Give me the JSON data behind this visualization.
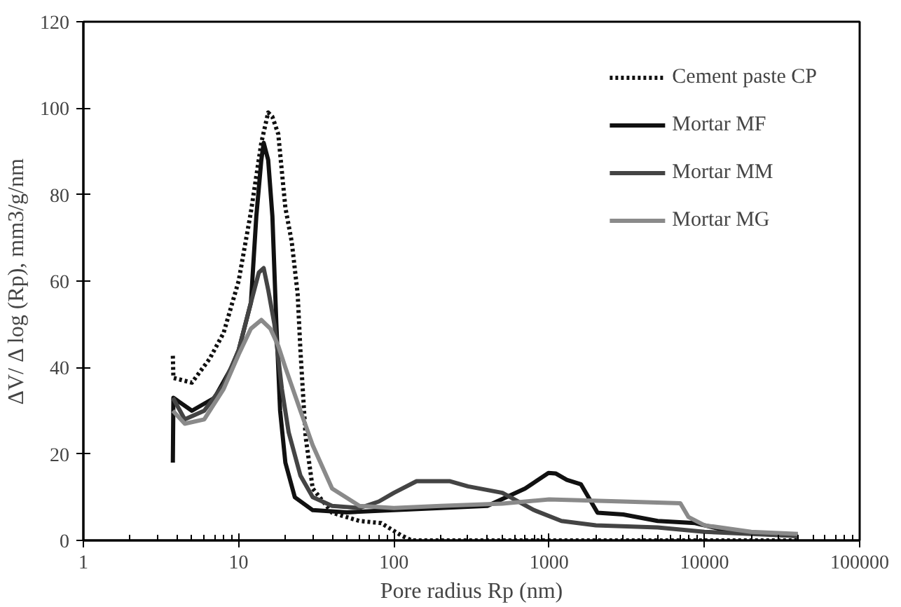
{
  "chart_data": {
    "type": "line",
    "xlabel": "Pore radius Rp (nm)",
    "ylabel": "ΔV/ Δ log (Rp), mm3/g/nm",
    "log": "x",
    "xlim": [
      1,
      100000
    ],
    "xticks": [
      1,
      10,
      100,
      1000,
      10000,
      100000
    ],
    "ylim": [
      0,
      120
    ],
    "yticks": [
      0,
      20,
      40,
      60,
      80,
      100,
      120
    ],
    "grid": false,
    "legend": "top right",
    "marker": "none",
    "series": [
      {
        "name": "Cement paste CP",
        "color": "#111111",
        "line_style": "dotted",
        "x": [
          3.77,
          3.8,
          5,
          6.5,
          8,
          10,
          12,
          14,
          15.5,
          16.5,
          18,
          20,
          22,
          24,
          25,
          27,
          30,
          40,
          60,
          83,
          111,
          130,
          1000,
          10000,
          40000
        ],
        "values": [
          42.7,
          37.6,
          36.5,
          42,
          48,
          60,
          76,
          92,
          99,
          98,
          94,
          77,
          69,
          57,
          44,
          24,
          12,
          6.4,
          4.5,
          4,
          1.2,
          0,
          0,
          0,
          0
        ]
      },
      {
        "name": "Mortar MF",
        "color": "#111111",
        "line_style": "solid",
        "x": [
          3.77,
          3.8,
          5,
          7,
          9,
          10,
          12,
          13,
          14,
          14.5,
          15.5,
          16.5,
          17.5,
          18.5,
          20,
          23,
          30,
          50,
          100,
          200,
          400,
          700,
          990,
          1100,
          1300,
          1600,
          2050,
          3000,
          5000,
          8700,
          15000,
          40000
        ],
        "values": [
          18,
          33,
          30,
          33,
          40,
          44,
          55,
          75,
          88,
          92,
          88,
          75,
          50,
          30,
          18,
          10,
          7,
          6.5,
          7,
          7.5,
          8,
          12,
          15.6,
          15.5,
          14,
          13,
          6.4,
          6,
          4.5,
          4,
          2,
          1
        ]
      },
      {
        "name": "Mortar MM",
        "color": "#444444",
        "line_style": "solid",
        "x": [
          3.77,
          4.5,
          6,
          8,
          10,
          12,
          13.5,
          14.5,
          15.5,
          17,
          19,
          21,
          25,
          30,
          40,
          60,
          80,
          100,
          140,
          230,
          300,
          500,
          800,
          1200,
          2000,
          5000,
          10000,
          40000
        ],
        "values": [
          33,
          28,
          30,
          36,
          44,
          55,
          62,
          63,
          58,
          50,
          35,
          25,
          15,
          10,
          8,
          7.5,
          9,
          11,
          13.7,
          13.7,
          12.5,
          11,
          7,
          4.5,
          3.5,
          3,
          2,
          1
        ]
      },
      {
        "name": "Mortar MG",
        "color": "#8a8a8a",
        "line_style": "solid",
        "x": [
          3.77,
          4.5,
          6,
          8,
          10,
          12,
          14,
          16,
          18,
          20,
          25,
          30,
          40,
          60,
          100,
          200,
          500,
          1000,
          3000,
          7000,
          7900,
          10000,
          20000,
          40000
        ],
        "values": [
          30,
          27,
          28,
          35,
          43,
          49,
          51,
          49,
          45,
          40,
          30,
          22,
          12,
          8,
          7.5,
          8,
          8.5,
          9.5,
          9,
          8.6,
          5.4,
          3.5,
          2,
          1.5
        ]
      }
    ]
  }
}
